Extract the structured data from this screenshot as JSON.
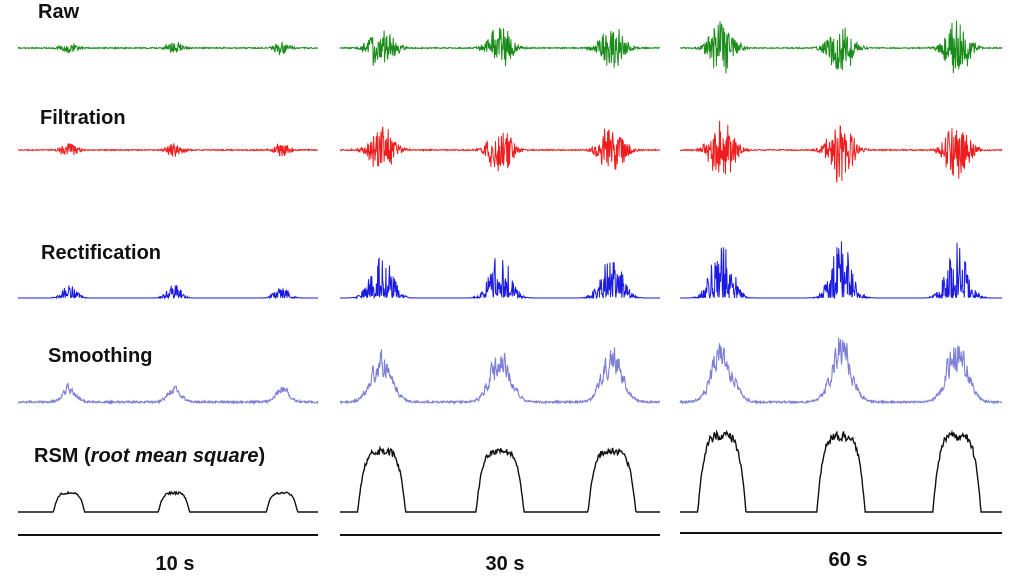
{
  "figure": {
    "rows": [
      {
        "key": "raw",
        "label": "Raw",
        "color": "#1a8c1a",
        "style": "bipolar"
      },
      {
        "key": "filtration",
        "label": "Filtration",
        "color": "#ee1c1c",
        "style": "bipolar"
      },
      {
        "key": "rectification",
        "label": "Rectification",
        "color": "#1a1ae0",
        "style": "rectified"
      },
      {
        "key": "smoothing",
        "label": "Smoothing",
        "color": "#7f7fd6",
        "style": "smoothed"
      },
      {
        "key": "rms",
        "label_main": "RSM (",
        "label_italic": "root mean square",
        "label_tail": ")",
        "color": "#111111",
        "style": "envelope"
      }
    ],
    "columns": [
      {
        "key": "10s",
        "label": "10 s",
        "burst_intensity": 0.25
      },
      {
        "key": "30s",
        "label": "30 s",
        "burst_intensity": 0.8
      },
      {
        "key": "60s",
        "label": "60 s",
        "burst_intensity": 1.0
      }
    ],
    "bursts_per_panel": 3
  }
}
